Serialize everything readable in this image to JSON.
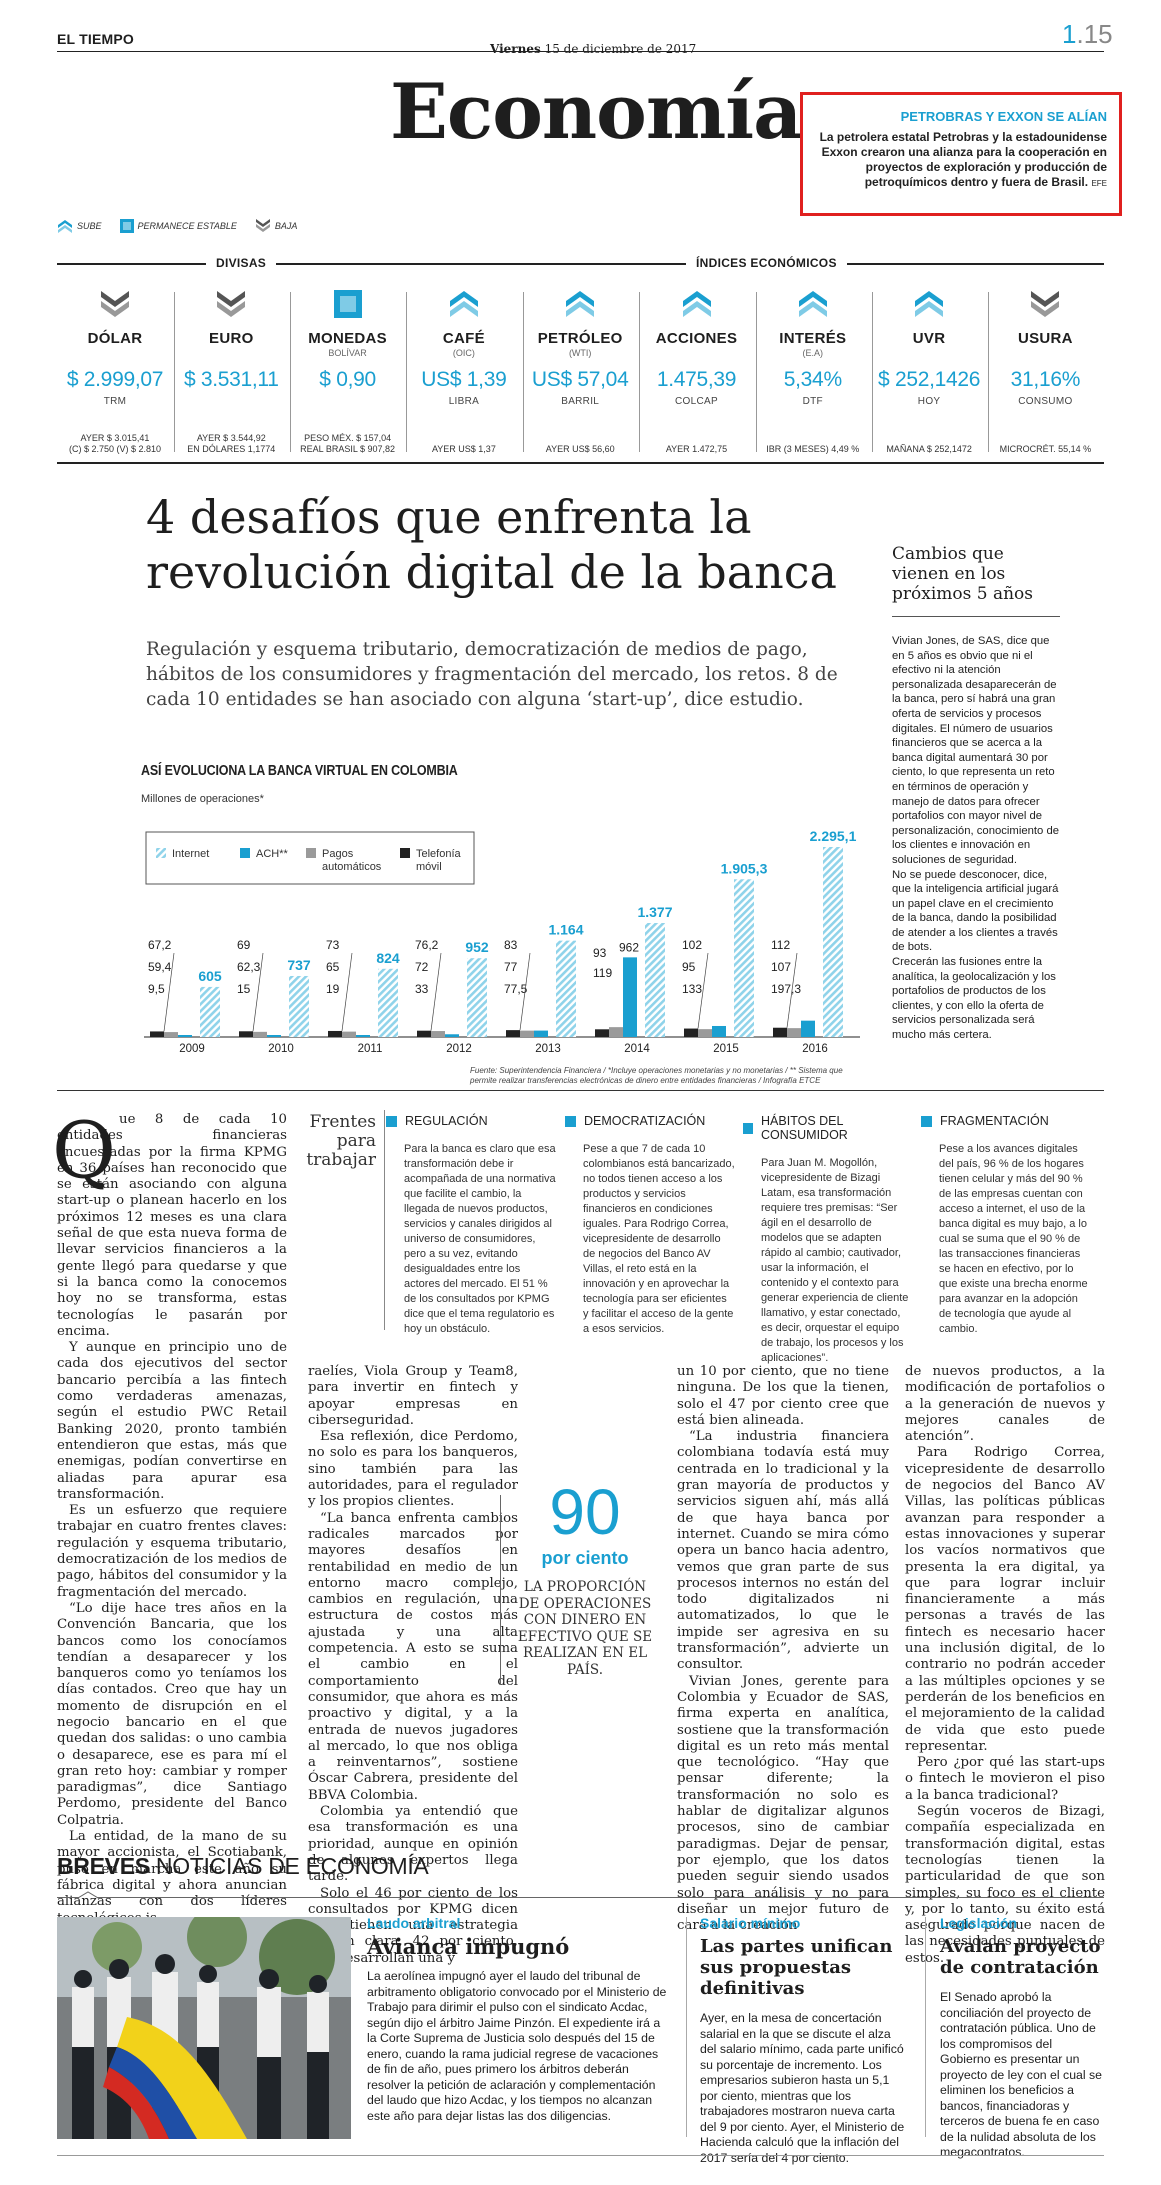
{
  "masthead": {
    "paper": "EL TIEMPO",
    "day": "Viernes",
    "date": "15 de diciembre de 2017",
    "page_main": "1",
    "page_sub": ".15",
    "section": "Economía"
  },
  "promo": {
    "title": "PETROBRAS Y EXXON SE ALÍAN",
    "body": "La petrolera estatal Petrobras y la estadounidense Exxon crearon una alianza para la cooperación en proyectos de exploración y producción de petroquímicos dentro y fuera de Brasil.",
    "credit": "EFE"
  },
  "legend": {
    "up": "SUBE",
    "stable": "PERMANECE ESTABLE",
    "down": "BAJA"
  },
  "headers": {
    "divisas": "DIVISAS",
    "indices": "ÍNDICES ECONÓMICOS"
  },
  "indicators": [
    {
      "trend": "down",
      "name": "DÓLAR",
      "sub": "",
      "value": "$ 2.999,07",
      "unit": "TRM",
      "foot1": "AYER $ 3.015,41",
      "foot2": "(C) $ 2.750 (V) $ 2.810"
    },
    {
      "trend": "down",
      "name": "EURO",
      "sub": "",
      "value": "$ 3.531,11",
      "unit": "",
      "foot1": "AYER $ 3.544,92",
      "foot2": "EN DÓLARES 1,1774"
    },
    {
      "trend": "stable",
      "name": "MONEDAS",
      "sub": "BOLÍVAR",
      "value": "$ 0,90",
      "unit": "",
      "foot1": "PESO MÉX. $ 157,04",
      "foot2": "REAL BRASIL $ 907,82"
    },
    {
      "trend": "up",
      "name": "CAFÉ",
      "sub": "(OIC)",
      "value": "US$ 1,39",
      "unit": "LIBRA",
      "foot1": "AYER US$ 1,37",
      "foot2": ""
    },
    {
      "trend": "up",
      "name": "PETRÓLEO",
      "sub": "(WTI)",
      "value": "US$ 57,04",
      "unit": "BARRIL",
      "foot1": "AYER US$ 56,60",
      "foot2": ""
    },
    {
      "trend": "up",
      "name": "ACCIONES",
      "sub": "",
      "value": "1.475,39",
      "unit": "COLCAP",
      "foot1": "AYER 1.472,75",
      "foot2": ""
    },
    {
      "trend": "up",
      "name": "INTERÉS",
      "sub": "(E.A)",
      "value": "5,34%",
      "unit": "DTF",
      "foot1": "IBR (3 MESES) 4,49 %",
      "foot2": ""
    },
    {
      "trend": "up",
      "name": "UVR",
      "sub": "",
      "value": "$ 252,1426",
      "unit": "HOY",
      "foot1": "MAÑANA $ 252,1472",
      "foot2": ""
    },
    {
      "trend": "down",
      "name": "USURA",
      "sub": "",
      "value": "31,16%",
      "unit": "CONSUMO",
      "foot1": "MICROCRÉT. 55,14 %",
      "foot2": ""
    }
  ],
  "article": {
    "headline": "4 desafíos que enfrenta la revolución digital de la banca",
    "deck": "Regulación y esquema tributario, democratización de medios de pago, hábitos de los consumidores y fragmentación del mercado, los retos. 8 de cada 10 entidades se han asociado con alguna ‘start-up’, dice estudio.",
    "dropcap": "Q",
    "c1": "ue 8 de cada 10 entidades financieras encuestadas por la firma KPMG en 36 países han reconocido que se están asociando con alguna start-up o planean hacerlo en los próximos 12 meses es una clara señal de que esta nueva forma de llevar servicios financieros a la gente llegó para quedarse y que si la banca como la conocemos hoy no se transforma, estas tecnologías le pasarán por encima.",
    "c1b": "Y aunque en principio uno de cada dos ejecutivos del sector bancario percibía a las fintech como verdaderas amenazas, según el estudio PWC Retail Banking 2020, pronto también entendieron que estas, más que enemigas, podían convertirse en aliadas para apurar esa transformación.",
    "c1c": "Es un esfuerzo que requiere trabajar en cuatro frentes claves: regulación y esquema tributario, democratización de los medios de pago, hábitos del consumidor y la fragmentación del mercado.",
    "c1d": "“Lo dije hace tres años en la Convención Bancaria, que los bancos como los conocíamos tendían a desaparecer y los banqueros como yo teníamos los días contados. Creo que hay un momento de disrupción en el negocio bancario en el que quedan dos salidas: o uno cambia o desaparece, ese es para mí el gran reto hoy: cambiar y romper paradigmas”, dice Santiago Perdomo, presidente del Banco Colpatria.",
    "c1e": "La entidad, de la mano de su mayor accionista, el Scotiabank, puso en marcha este año su fábrica digital y ahora anuncian alianzas con dos líderes tecnológicos is-",
    "c2": "raelíes, Viola Group y Team8, para invertir en fintech y apoyar empresas en ciberseguridad.",
    "c2b": "Esa reflexión, dice Perdomo, no solo es para los banqueros, sino también para las autoridades, para el regulador y los propios clientes.",
    "c2c": "“La banca enfrenta cambios radicales marcados por mayores desafíos en rentabilidad en medio de un entorno macro complejo, cambios en regulación, una estructura de costos más ajustada y una alta competencia. A esto se suma el cambio en el comportamiento del consumidor, que ahora es más proactivo y digital, y a la entrada de nuevos jugadores al mercado, lo que nos obliga a reinventarnos”, sostiene Óscar Cabrera, presidente del BBVA Colombia.",
    "c2d": "Colombia ya entendió que esa transformación es una prioridad, aunque en opinión de algunos expertos llega tarde.",
    "c2e": "Solo el 46 por ciento de los consultados por KPMG dicen que tienen una estrategia fintech clara, 42 por ciento, que desarrollan una y",
    "c3": "un 10 por ciento, que no tiene ninguna. De los que la tienen, solo el 47 por ciento cree que está bien alineada.",
    "c3b": "“La industria financiera colombiana todavía está muy centrada en lo tradicional y la gran mayoría de productos y servicios siguen ahí, más allá de que haya banca por internet. Cuando se mira cómo opera un banco hacia adentro, vemos que gran parte de sus procesos internos no están del todo digitalizados ni automatizados, lo que le impide ser agresiva en su transformación”, advierte un consultor.",
    "c3c": "Vivian Jones, gerente para Colombia y Ecuador de SAS, firma experta en analítica, sostiene que la transformación digital es un reto más mental que tecnológico. “Hay que pensar diferente; la transformación no solo es hablar de digitalizar algunos procesos, sino de cambiar paradigmas. Dejar de pensar, por ejemplo, que los datos pueden seguir siendo usados solo para análisis y no para diseñar un mejor futuro de cara a la creación",
    "c4": "de nuevos productos, a la modificación de portafolios o a la generación de nuevos y mejores canales de atención”.",
    "c4b": "Para Rodrigo Correa, vicepresidente de desarrollo de negocios del Banco AV Villas, las políticas públicas avanzan para responder a estas innovaciones y superar los vacíos normativos que presenta la era digital, ya que para lograr incluir financieramente a más personas a través de las fintech es necesario hacer una inclusión digital, de lo contrario no podrán acceder a las múltiples opciones y se perderán de los beneficios en el mejoramiento de la calidad de vida que esto puede representar.",
    "c4c": "Pero ¿por qué las start-ups o fintech le movieron el piso a la banca tradicional?",
    "c4d": "Según voceros de Bizagi, compañía especializada en transformación digital, estas tecnologías tienen la particularidad de que son simples, su foco es el cliente y, por lo tanto, su éxito está asegurado porque nacen de las necesidades puntuales de estos."
  },
  "pullquote": {
    "number": "90",
    "label": "por ciento",
    "text": "LA PROPORCIÓN DE OPERACIONES CON DINERO EN EFECTIVO QUE SE REALIZAN EN EL PAÍS."
  },
  "sidebar": {
    "title": "Cambios que vienen en los próximos 5 años",
    "body": "Vivian Jones, de SAS, dice que en 5 años es obvio que ni el efectivo ni la atención personalizada desaparecerán de la banca, pero sí habrá una gran oferta de servicios y procesos digitales. El número de usuarios financieros que se acerca a la banca digital aumentará 30 por ciento, lo que representa un reto en términos de operación y manejo de datos para ofrecer portafolios con mayor nivel de personalización, conocimiento de los clientes e innovación en soluciones de seguridad.",
    "body2": "No se puede desconocer, dice, que la inteligencia artificial jugará un papel clave en el crecimiento de la banca, dando la posibilidad de atender a los clientes a través de bots.",
    "body3": "Crecerán las fusiones entre la analítica, la geolocalización y los portafolios de productos de los clientes, y con ello la oferta de servicios personalizada será mucho más certera."
  },
  "fronts": {
    "title": "Frentes para trabajar",
    "items": [
      {
        "title": "REGULACIÓN",
        "body": "Para la banca es claro que esa transformación debe ir acompañada de una normativa que facilite el cambio, la llegada de nuevos productos, servicios y canales dirigidos al universo de consumidores, pero a su vez, evitando desigualdades entre los actores del mercado. El 51 % de los consultados por KPMG dice que el tema regulatorio es hoy un obstáculo."
      },
      {
        "title": "DEMOCRATIZACIÓN",
        "body": "Pese a que 7 de cada 10 colombianos está bancarizado, no todos tienen acceso a los productos y servicios financieros en condiciones iguales. Para Rodrigo Correa, vicepresidente de desarrollo de negocios del Banco AV Villas, el reto está en la innovación y en aprovechar la tecnología para ser eficientes y facilitar el acceso de la gente a esos servicios."
      },
      {
        "title": "HÁBITOS DEL CONSUMIDOR",
        "body": "Para Juan M. Mogollón, vicepresidente de Bizagi Latam, esa transformación requiere tres premisas: “Ser ágil en el desarrollo de modelos que se adapten rápido al cambio; cautivador, usar la información, el contenido y el contexto para generar experiencia de cliente llamativo, y estar conectado, es decir, orquestar el equipo de trabajo, los procesos y los aplicaciones”."
      },
      {
        "title": "FRAGMENTACIÓN",
        "body": "Pese a los avances digitales del país, 96 % de los hogares tienen celular y más del 90 % de las empresas cuentan con acceso a internet, el uso de la banca digital es muy bajo, a lo cual se suma que el 90 % de las transacciones financieras se hacen en efectivo, por lo que existe una brecha enorme para avanzar en la adopción de tecnología que ayude al cambio."
      }
    ]
  },
  "chart_data": {
    "type": "bar",
    "title": "ASÍ EVOLUCIONA LA BANCA VIRTUAL EN COLOMBIA",
    "subtitle": "Millones de operaciones*",
    "categories": [
      "2009",
      "2010",
      "2011",
      "2012",
      "2013",
      "2014",
      "2015",
      "2016"
    ],
    "series": [
      {
        "name": "Internet",
        "color": "#8fd3ea",
        "values": [
          605,
          737,
          824,
          952,
          1164,
          1377,
          1905.3,
          2295.1
        ],
        "labels": [
          "605",
          "737",
          "824",
          "952",
          "1.164",
          "1.377",
          "1.905,3",
          "2.295,1"
        ]
      },
      {
        "name": "ACH**",
        "color": "#1a9fd0",
        "values": [
          9.5,
          15,
          19,
          33,
          77.5,
          962,
          133,
          197.3
        ],
        "labels": [
          "9,5",
          "15",
          "19",
          "33",
          "77,5",
          "962",
          "133",
          "197,3"
        ]
      },
      {
        "name": "Pagos automáticos",
        "color": "#9a9a9a",
        "values": [
          59.4,
          62.3,
          65,
          72,
          77,
          119,
          95,
          107
        ],
        "labels": [
          "59,4",
          "62,3",
          "65",
          "72",
          "77",
          "119",
          "95",
          "107"
        ]
      },
      {
        "name": "Telefonía móvil",
        "color": "#222222",
        "values": [
          67.2,
          69,
          73,
          76.2,
          83,
          93,
          102,
          112
        ],
        "labels": [
          "67,2",
          "69",
          "73",
          "76,2",
          "83",
          "93",
          "102",
          "112"
        ]
      }
    ],
    "source": "Fuente: Superintendencia Financiera / *Incluye operaciones monetarias y no monetarias / ** Sistema que permite realizar transferencias electrónicas de dinero entre entidades financieras / Infografía ETCE"
  },
  "breves": {
    "label_bold": "BREVES",
    "label": "NOTICIAS DE ECONOMÍA",
    "items": [
      {
        "cat": "Laudo arbitral",
        "head": "Avianca impugnó",
        "body": "La aerolínea impugnó ayer el laudo del tribunal de arbitramento obligatorio convocado por el Ministerio de Trabajo para dirimir el pulso con el sindicato Acdac, según dijo el árbitro Jaime Pinzón. El expediente irá a la Corte Suprema de Justicia solo después del 15 de enero, cuando la rama judicial regrese de vacaciones de fin de año, pues primero los árbitros deberán resolver la petición de aclaración y complementación del laudo que hizo Acdac, y los tiempos no alcanzan este año para dejar listas las dos diligencias."
      },
      {
        "cat": "Salario mínimo",
        "head": "Las partes unifican sus propuestas definitivas",
        "body": "Ayer, en la mesa de concertación salarial en la que se discute el alza del salario mínimo, cada parte unificó su porcentaje de incremento. Los empresarios subieron hasta un 5,1 por ciento, mientras que los trabajadores mostraron nueva carta del 9 por ciento. Ayer, el Ministerio de Hacienda calculó que la inflación del 2017 sería del 4 por ciento."
      },
      {
        "cat": "Legislación",
        "head": "Avalan proyecto de contratación",
        "body": "El Senado aprobó la conciliación del proyecto de contratación pública. Uno de los compromisos del Gobierno es presentar un proyecto de ley con el cual se eliminen los beneficios a bancos, financiadoras y terceros de buena fe en caso de la nulidad absoluta de los megacontratos."
      }
    ]
  }
}
